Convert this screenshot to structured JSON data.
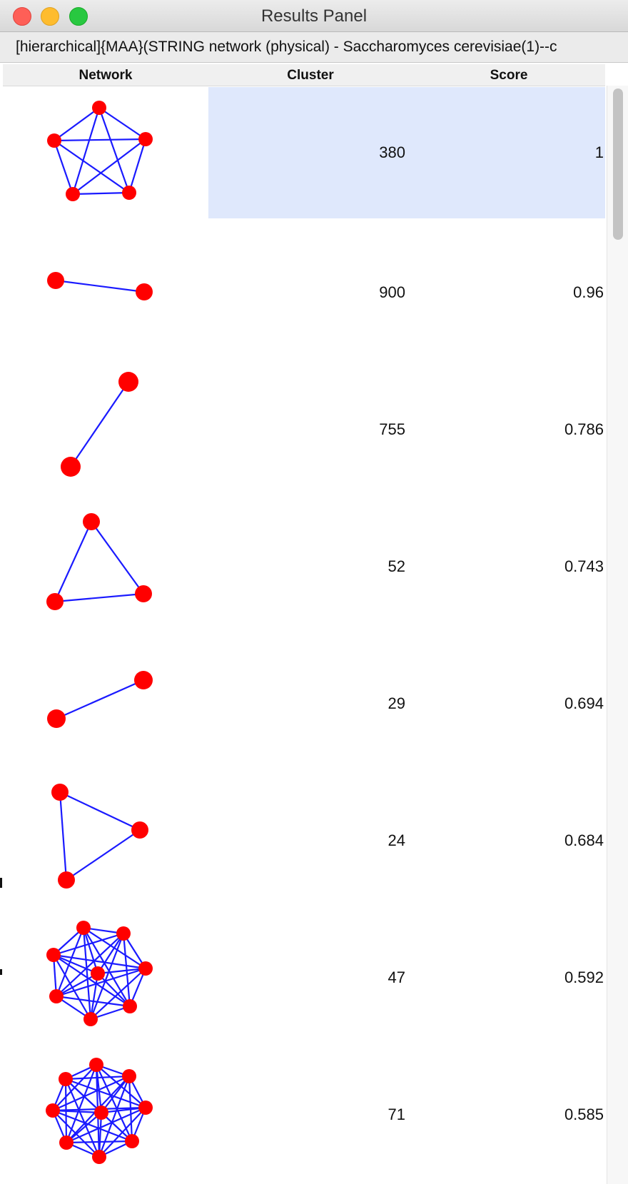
{
  "window": {
    "title": "Results Panel"
  },
  "subtitle": "[hierarchical]{MAA}(STRING network (physical) - Saccharomyces cerevisiae(1)--c",
  "table": {
    "columns": [
      "Network",
      "Cluster",
      "Score"
    ],
    "rows": [
      {
        "cluster": "380",
        "score": "1",
        "selected": true
      },
      {
        "cluster": "900",
        "score": "0.96"
      },
      {
        "cluster": "755",
        "score": "0.786"
      },
      {
        "cluster": "52",
        "score": "0.743"
      },
      {
        "cluster": "29",
        "score": "0.694"
      },
      {
        "cluster": "24",
        "score": "0.684"
      },
      {
        "cluster": "47",
        "score": "0.592"
      },
      {
        "cluster": "71",
        "score": "0.585"
      }
    ]
  },
  "colors": {
    "node": "#ff0000",
    "edge": "#1a1aff",
    "selection": "#dfe8fc"
  }
}
